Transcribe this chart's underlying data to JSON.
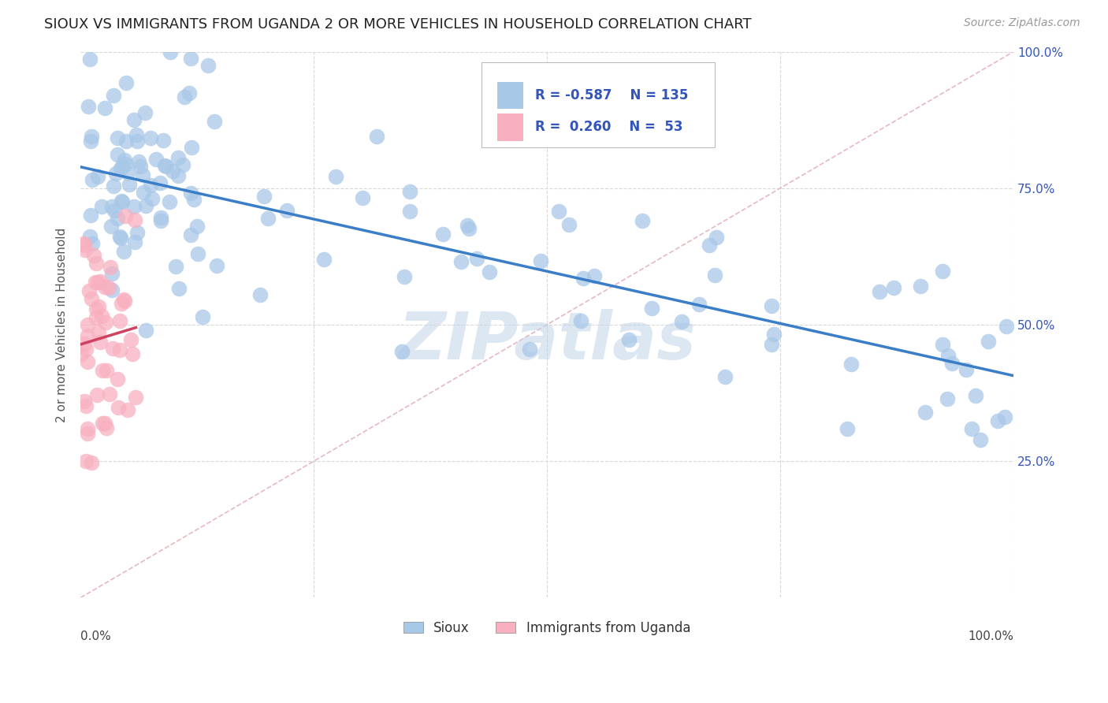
{
  "title": "SIOUX VS IMMIGRANTS FROM UGANDA 2 OR MORE VEHICLES IN HOUSEHOLD CORRELATION CHART",
  "source_text": "Source: ZipAtlas.com",
  "ylabel": "2 or more Vehicles in Household",
  "watermark": "ZIPatlas",
  "sioux_R": -0.587,
  "sioux_N": 135,
  "uganda_R": 0.26,
  "uganda_N": 53,
  "sioux_color": "#a8c8e8",
  "sioux_line_color": "#3a7ec8",
  "uganda_color": "#f8b0c0",
  "uganda_line_color": "#d04060",
  "diagonal_color": "#e8b8c0",
  "right_yticks": [
    "100.0%",
    "75.0%",
    "50.0%",
    "25.0%"
  ],
  "right_ytick_vals": [
    1.0,
    0.75,
    0.5,
    0.25
  ],
  "grid_color": "#d8d8d8",
  "background_color": "#ffffff",
  "xlim": [
    0.0,
    1.0
  ],
  "ylim": [
    0.0,
    1.0
  ],
  "legend_text_color": "#3355bb",
  "title_color": "#222222",
  "title_fontsize": 13,
  "axis_label_fontsize": 11,
  "watermark_color": "#c0d4e8",
  "source_color": "#999999"
}
